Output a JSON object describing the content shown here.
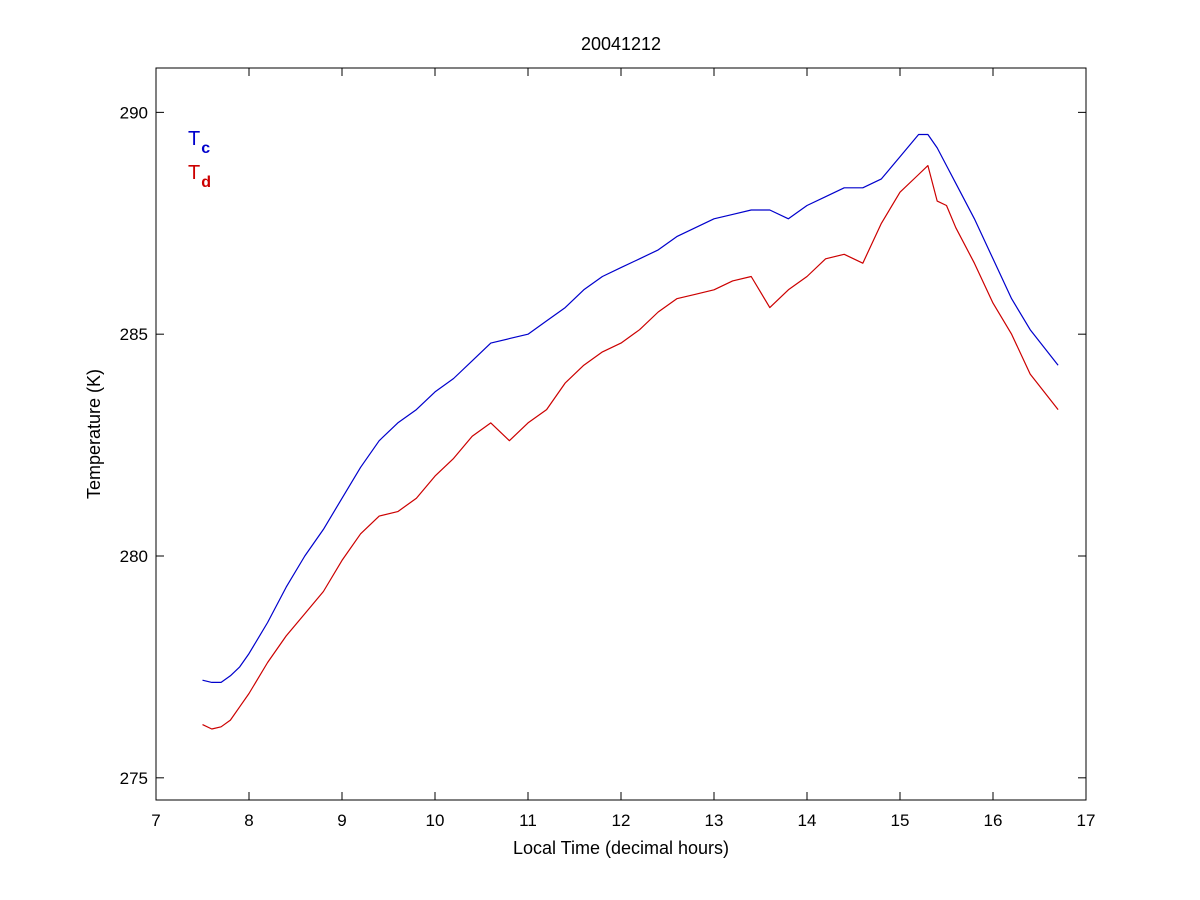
{
  "chart_data": {
    "type": "line",
    "title": "20041212",
    "xlabel": "Local Time (decimal hours)",
    "ylabel": "Temperature (K)",
    "xlim": [
      7,
      17
    ],
    "ylim": [
      274.5,
      291
    ],
    "xticks": [
      7,
      8,
      9,
      10,
      11,
      12,
      13,
      14,
      15,
      16,
      17
    ],
    "yticks": [
      275,
      280,
      285,
      290
    ],
    "grid": false,
    "legend_position": "top-left",
    "series": [
      {
        "name": "T",
        "subscript": "c",
        "color": "#0000cc",
        "x": [
          7.5,
          7.6,
          7.7,
          7.8,
          7.9,
          8.0,
          8.2,
          8.4,
          8.6,
          8.8,
          9.0,
          9.2,
          9.4,
          9.6,
          9.8,
          10.0,
          10.2,
          10.4,
          10.6,
          10.8,
          11.0,
          11.2,
          11.4,
          11.6,
          11.8,
          12.0,
          12.2,
          12.4,
          12.6,
          12.8,
          13.0,
          13.2,
          13.4,
          13.6,
          13.8,
          14.0,
          14.2,
          14.4,
          14.6,
          14.8,
          15.0,
          15.2,
          15.3,
          15.4,
          15.5,
          15.6,
          15.8,
          16.0,
          16.2,
          16.4,
          16.7
        ],
        "y": [
          277.2,
          277.15,
          277.15,
          277.3,
          277.5,
          277.8,
          278.5,
          279.3,
          280.0,
          280.6,
          281.3,
          282.0,
          282.6,
          283.0,
          283.3,
          283.7,
          284.0,
          284.4,
          284.8,
          284.9,
          285.0,
          285.3,
          285.6,
          286.0,
          286.3,
          286.5,
          286.7,
          286.9,
          287.2,
          287.4,
          287.6,
          287.7,
          287.8,
          287.8,
          287.6,
          287.9,
          288.1,
          288.3,
          288.3,
          288.5,
          289.0,
          289.5,
          289.5,
          289.2,
          288.8,
          288.4,
          287.6,
          286.7,
          285.8,
          285.1,
          284.3
        ]
      },
      {
        "name": "T",
        "subscript": "d",
        "color": "#cc0000",
        "x": [
          7.5,
          7.6,
          7.7,
          7.8,
          7.9,
          8.0,
          8.2,
          8.4,
          8.6,
          8.8,
          9.0,
          9.2,
          9.4,
          9.6,
          9.8,
          10.0,
          10.2,
          10.4,
          10.6,
          10.8,
          11.0,
          11.2,
          11.4,
          11.6,
          11.8,
          12.0,
          12.2,
          12.4,
          12.6,
          12.8,
          13.0,
          13.2,
          13.4,
          13.6,
          13.8,
          14.0,
          14.2,
          14.4,
          14.6,
          14.8,
          15.0,
          15.2,
          15.3,
          15.4,
          15.5,
          15.6,
          15.8,
          16.0,
          16.2,
          16.4,
          16.7
        ],
        "y": [
          276.2,
          276.1,
          276.15,
          276.3,
          276.6,
          276.9,
          277.6,
          278.2,
          278.7,
          279.2,
          279.9,
          280.5,
          280.9,
          281.0,
          281.3,
          281.8,
          282.2,
          282.7,
          283.0,
          282.6,
          283.0,
          283.3,
          283.9,
          284.3,
          284.6,
          284.8,
          285.1,
          285.5,
          285.8,
          285.9,
          286.0,
          286.2,
          286.3,
          285.6,
          286.0,
          286.3,
          286.7,
          286.8,
          286.6,
          287.5,
          288.2,
          288.6,
          288.8,
          288.0,
          287.9,
          287.4,
          286.6,
          285.7,
          285.0,
          284.1,
          283.3
        ]
      }
    ]
  }
}
